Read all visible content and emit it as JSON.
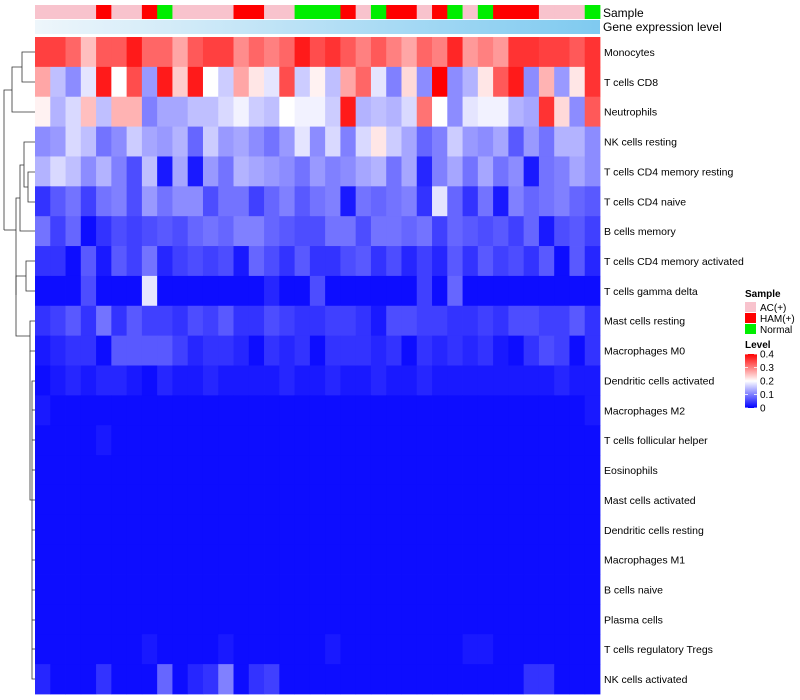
{
  "chart_data": {
    "type": "heatmap",
    "title": "",
    "annotation_tracks": [
      "Sample",
      "Gene expression level"
    ],
    "rows": [
      "Monocytes",
      "T cells CD8",
      "Neutrophils",
      "NK cells resting",
      "T cells CD4 memory resting",
      "T cells CD4 naive",
      "B cells memory",
      "T cells CD4 memory activated",
      "T cells gamma delta",
      "Mast cells resting",
      "Macrophages M0",
      "Dendritic cells activated",
      "Macrophages M2",
      "T cells follicular helper",
      "Eosinophils",
      "Mast cells activated",
      "Dendritic cells resting",
      "Macrophages M1",
      "B cells naive",
      "Plasma cells",
      "T cells regulatory  Tregs",
      "NK cells activated"
    ],
    "sample_groups": [
      "AC",
      "AC",
      "AC",
      "AC",
      "HAM",
      "AC",
      "AC",
      "HAM",
      "Normal",
      "AC",
      "AC",
      "AC",
      "AC",
      "HAM",
      "HAM",
      "AC",
      "AC",
      "Normal",
      "Normal",
      "Normal",
      "HAM",
      "AC",
      "Normal",
      "HAM",
      "HAM",
      "AC",
      "HAM",
      "Normal",
      "AC",
      "Normal",
      "HAM",
      "HAM",
      "HAM",
      "AC",
      "AC",
      "AC",
      "Normal"
    ],
    "values": [
      [
        0.35,
        0.35,
        0.32,
        0.25,
        0.33,
        0.33,
        0.38,
        0.32,
        0.32,
        0.27,
        0.33,
        0.35,
        0.35,
        0.29,
        0.32,
        0.3,
        0.32,
        0.38,
        0.34,
        0.36,
        0.33,
        0.3,
        0.33,
        0.3,
        0.27,
        0.32,
        0.3,
        0.37,
        0.28,
        0.3,
        0.28,
        0.36,
        0.36,
        0.35,
        0.35,
        0.33,
        0.36
      ],
      [
        0.27,
        0.15,
        0.11,
        0.18,
        0.38,
        0.2,
        0.34,
        0.12,
        0.38,
        0.24,
        0.38,
        0.2,
        0.16,
        0.27,
        0.22,
        0.18,
        0.34,
        0.16,
        0.21,
        0.15,
        0.27,
        0.32,
        0.18,
        0.1,
        0.23,
        0.11,
        0.4,
        0.11,
        0.14,
        0.22,
        0.33,
        0.38,
        0.11,
        0.26,
        0.12,
        0.22,
        0.36
      ],
      [
        0.21,
        0.14,
        0.17,
        0.25,
        0.15,
        0.26,
        0.26,
        0.1,
        0.13,
        0.13,
        0.15,
        0.15,
        0.17,
        0.19,
        0.16,
        0.15,
        0.2,
        0.19,
        0.19,
        0.16,
        0.38,
        0.14,
        0.15,
        0.14,
        0.17,
        0.31,
        0.2,
        0.11,
        0.18,
        0.19,
        0.19,
        0.14,
        0.13,
        0.36,
        0.23,
        0.11,
        0.33
      ],
      [
        0.11,
        0.12,
        0.17,
        0.15,
        0.09,
        0.11,
        0.16,
        0.13,
        0.12,
        0.14,
        0.08,
        0.16,
        0.12,
        0.13,
        0.11,
        0.09,
        0.12,
        0.18,
        0.11,
        0.17,
        0.1,
        0.17,
        0.22,
        0.16,
        0.13,
        0.08,
        0.1,
        0.16,
        0.12,
        0.11,
        0.13,
        0.07,
        0.12,
        0.09,
        0.14,
        0.14,
        0.11
      ],
      [
        0.14,
        0.17,
        0.15,
        0.11,
        0.14,
        0.1,
        0.06,
        0.15,
        0.02,
        0.13,
        0.02,
        0.12,
        0.09,
        0.14,
        0.13,
        0.12,
        0.11,
        0.09,
        0.12,
        0.1,
        0.11,
        0.13,
        0.14,
        0.09,
        0.13,
        0.03,
        0.1,
        0.13,
        0.09,
        0.13,
        0.09,
        0.11,
        0.02,
        0.09,
        0.1,
        0.13,
        0.11
      ],
      [
        0.04,
        0.07,
        0.09,
        0.05,
        0.09,
        0.1,
        0.06,
        0.12,
        0.09,
        0.11,
        0.11,
        0.06,
        0.09,
        0.09,
        0.05,
        0.08,
        0.1,
        0.07,
        0.09,
        0.1,
        0.02,
        0.09,
        0.08,
        0.09,
        0.1,
        0.04,
        0.18,
        0.08,
        0.04,
        0.09,
        0.02,
        0.1,
        0.08,
        0.09,
        0.1,
        0.08,
        0.07
      ],
      [
        0.09,
        0.05,
        0.08,
        0.01,
        0.04,
        0.06,
        0.05,
        0.06,
        0.07,
        0.06,
        0.08,
        0.09,
        0.08,
        0.1,
        0.1,
        0.08,
        0.07,
        0.06,
        0.06,
        0.09,
        0.09,
        0.06,
        0.09,
        0.09,
        0.08,
        0.09,
        0.05,
        0.08,
        0.07,
        0.06,
        0.07,
        0.05,
        0.08,
        0.02,
        0.06,
        0.07,
        0.05
      ],
      [
        0.04,
        0.04,
        0.01,
        0.07,
        0.02,
        0.07,
        0.05,
        0.09,
        0.03,
        0.05,
        0.06,
        0.05,
        0.06,
        0.02,
        0.08,
        0.06,
        0.04,
        0.07,
        0.04,
        0.04,
        0.06,
        0.07,
        0.04,
        0.06,
        0.03,
        0.05,
        0.03,
        0.07,
        0.04,
        0.07,
        0.05,
        0.06,
        0.04,
        0.07,
        0.01,
        0.07,
        0.03
      ],
      [
        0.01,
        0.01,
        0.01,
        0.06,
        0.01,
        0.01,
        0.01,
        0.18,
        0.01,
        0.01,
        0.01,
        0.01,
        0.01,
        0.01,
        0.01,
        0.03,
        0.01,
        0.01,
        0.06,
        0.01,
        0.01,
        0.01,
        0.01,
        0.01,
        0.01,
        0.05,
        0.01,
        0.08,
        0.01,
        0.01,
        0.01,
        0.01,
        0.01,
        0.01,
        0.01,
        0.01,
        0.01
      ],
      [
        0.04,
        0.05,
        0.07,
        0.04,
        0.09,
        0.04,
        0.07,
        0.05,
        0.05,
        0.04,
        0.06,
        0.05,
        0.07,
        0.04,
        0.04,
        0.06,
        0.05,
        0.04,
        0.04,
        0.05,
        0.05,
        0.04,
        0.02,
        0.06,
        0.06,
        0.05,
        0.05,
        0.04,
        0.04,
        0.05,
        0.04,
        0.06,
        0.06,
        0.05,
        0.05,
        0.07,
        0.04
      ],
      [
        0.02,
        0.03,
        0.04,
        0.04,
        0.01,
        0.07,
        0.07,
        0.07,
        0.07,
        0.05,
        0.03,
        0.04,
        0.04,
        0.03,
        0.01,
        0.04,
        0.03,
        0.04,
        0.01,
        0.04,
        0.04,
        0.04,
        0.03,
        0.04,
        0.01,
        0.04,
        0.03,
        0.04,
        0.03,
        0.04,
        0.02,
        0.01,
        0.04,
        0.06,
        0.05,
        0.01,
        0.04
      ],
      [
        0.01,
        0.02,
        0.03,
        0.02,
        0.03,
        0.03,
        0.02,
        0.01,
        0.03,
        0.02,
        0.02,
        0.03,
        0.02,
        0.02,
        0.02,
        0.02,
        0.03,
        0.02,
        0.02,
        0.03,
        0.02,
        0.02,
        0.03,
        0.02,
        0.02,
        0.03,
        0.02,
        0.02,
        0.02,
        0.02,
        0.02,
        0.02,
        0.02,
        0.02,
        0.03,
        0.02,
        0.02
      ],
      [
        0.02,
        0.01,
        0.01,
        0.01,
        0.01,
        0.01,
        0.01,
        0.01,
        0.01,
        0.01,
        0.01,
        0.01,
        0.01,
        0.01,
        0.01,
        0.01,
        0.01,
        0.01,
        0.01,
        0.01,
        0.01,
        0.01,
        0.01,
        0.01,
        0.01,
        0.01,
        0.01,
        0.01,
        0.01,
        0.01,
        0.01,
        0.01,
        0.01,
        0.01,
        0.01,
        0.01,
        0.02
      ],
      [
        0.01,
        0.01,
        0.01,
        0.01,
        0.02,
        0.01,
        0.01,
        0.01,
        0.01,
        0.01,
        0.01,
        0.01,
        0.01,
        0.01,
        0.01,
        0.01,
        0.01,
        0.01,
        0.01,
        0.01,
        0.01,
        0.01,
        0.01,
        0.01,
        0.01,
        0.01,
        0.01,
        0.01,
        0.01,
        0.01,
        0.01,
        0.01,
        0.01,
        0.01,
        0.01,
        0.01,
        0.01
      ],
      [
        0.01,
        0.01,
        0.01,
        0.01,
        0.01,
        0.01,
        0.01,
        0.01,
        0.01,
        0.01,
        0.01,
        0.01,
        0.01,
        0.01,
        0.01,
        0.01,
        0.01,
        0.01,
        0.01,
        0.01,
        0.01,
        0.01,
        0.01,
        0.01,
        0.01,
        0.01,
        0.01,
        0.01,
        0.01,
        0.01,
        0.01,
        0.01,
        0.01,
        0.01,
        0.01,
        0.01,
        0.01
      ],
      [
        0.01,
        0.01,
        0.01,
        0.01,
        0.01,
        0.01,
        0.01,
        0.01,
        0.01,
        0.01,
        0.01,
        0.01,
        0.01,
        0.01,
        0.01,
        0.01,
        0.01,
        0.01,
        0.01,
        0.01,
        0.01,
        0.01,
        0.01,
        0.01,
        0.01,
        0.01,
        0.01,
        0.01,
        0.01,
        0.01,
        0.01,
        0.01,
        0.01,
        0.01,
        0.01,
        0.01,
        0.01
      ],
      [
        0.01,
        0.01,
        0.01,
        0.01,
        0.01,
        0.01,
        0.01,
        0.01,
        0.01,
        0.01,
        0.01,
        0.01,
        0.01,
        0.01,
        0.01,
        0.01,
        0.01,
        0.01,
        0.01,
        0.01,
        0.01,
        0.01,
        0.01,
        0.01,
        0.01,
        0.01,
        0.01,
        0.01,
        0.01,
        0.01,
        0.01,
        0.01,
        0.01,
        0.01,
        0.01,
        0.01,
        0.01
      ],
      [
        0.01,
        0.01,
        0.01,
        0.01,
        0.01,
        0.01,
        0.01,
        0.01,
        0.01,
        0.01,
        0.01,
        0.01,
        0.01,
        0.01,
        0.01,
        0.01,
        0.01,
        0.01,
        0.01,
        0.01,
        0.01,
        0.01,
        0.01,
        0.01,
        0.01,
        0.01,
        0.01,
        0.01,
        0.01,
        0.01,
        0.01,
        0.01,
        0.01,
        0.01,
        0.01,
        0.01,
        0.01
      ],
      [
        0.01,
        0.01,
        0.01,
        0.01,
        0.01,
        0.01,
        0.01,
        0.01,
        0.01,
        0.01,
        0.01,
        0.01,
        0.01,
        0.01,
        0.01,
        0.01,
        0.01,
        0.01,
        0.01,
        0.01,
        0.01,
        0.01,
        0.01,
        0.01,
        0.01,
        0.01,
        0.01,
        0.01,
        0.01,
        0.01,
        0.01,
        0.01,
        0.01,
        0.01,
        0.01,
        0.01,
        0.01
      ],
      [
        0.01,
        0.01,
        0.01,
        0.01,
        0.01,
        0.01,
        0.01,
        0.01,
        0.01,
        0.01,
        0.01,
        0.01,
        0.01,
        0.01,
        0.01,
        0.01,
        0.01,
        0.01,
        0.01,
        0.01,
        0.01,
        0.01,
        0.01,
        0.01,
        0.01,
        0.01,
        0.01,
        0.01,
        0.01,
        0.01,
        0.01,
        0.01,
        0.01,
        0.01,
        0.01,
        0.01,
        0.01
      ],
      [
        0.01,
        0.01,
        0.01,
        0.01,
        0.01,
        0.01,
        0.01,
        0.02,
        0.01,
        0.01,
        0.01,
        0.01,
        0.02,
        0.01,
        0.01,
        0.01,
        0.01,
        0.01,
        0.01,
        0.02,
        0.01,
        0.01,
        0.01,
        0.01,
        0.01,
        0.01,
        0.01,
        0.01,
        0.02,
        0.02,
        0.01,
        0.01,
        0.01,
        0.01,
        0.01,
        0.01,
        0.01
      ],
      [
        0.03,
        0.01,
        0.01,
        0.01,
        0.04,
        0.01,
        0.01,
        0.01,
        0.08,
        0.01,
        0.03,
        0.04,
        0.1,
        0.01,
        0.04,
        0.05,
        0.01,
        0.01,
        0.01,
        0.01,
        0.01,
        0.01,
        0.01,
        0.01,
        0.01,
        0.01,
        0.01,
        0.01,
        0.01,
        0.01,
        0.01,
        0.01,
        0.04,
        0.04,
        0.01,
        0.01,
        0.01
      ]
    ],
    "value_range": [
      0,
      0.4
    ],
    "colormap": [
      "#0000ff",
      "#ffffff",
      "#ff0000"
    ],
    "legend_sample": {
      "title": "Sample",
      "entries": [
        {
          "label": "AC(+)",
          "color": "#f8c3cd"
        },
        {
          "label": "HAM(+)",
          "color": "#ff0000"
        },
        {
          "label": "Normal",
          "color": "#00ee00"
        }
      ]
    },
    "legend_level": {
      "title": "Level",
      "ticks": [
        "0.4",
        "0.3",
        "0.2",
        "0.1",
        "0"
      ],
      "tick_values": [
        0.4,
        0.3,
        0.2,
        0.1,
        0
      ]
    },
    "gene_expression_track_color": "#7fcaf0"
  }
}
